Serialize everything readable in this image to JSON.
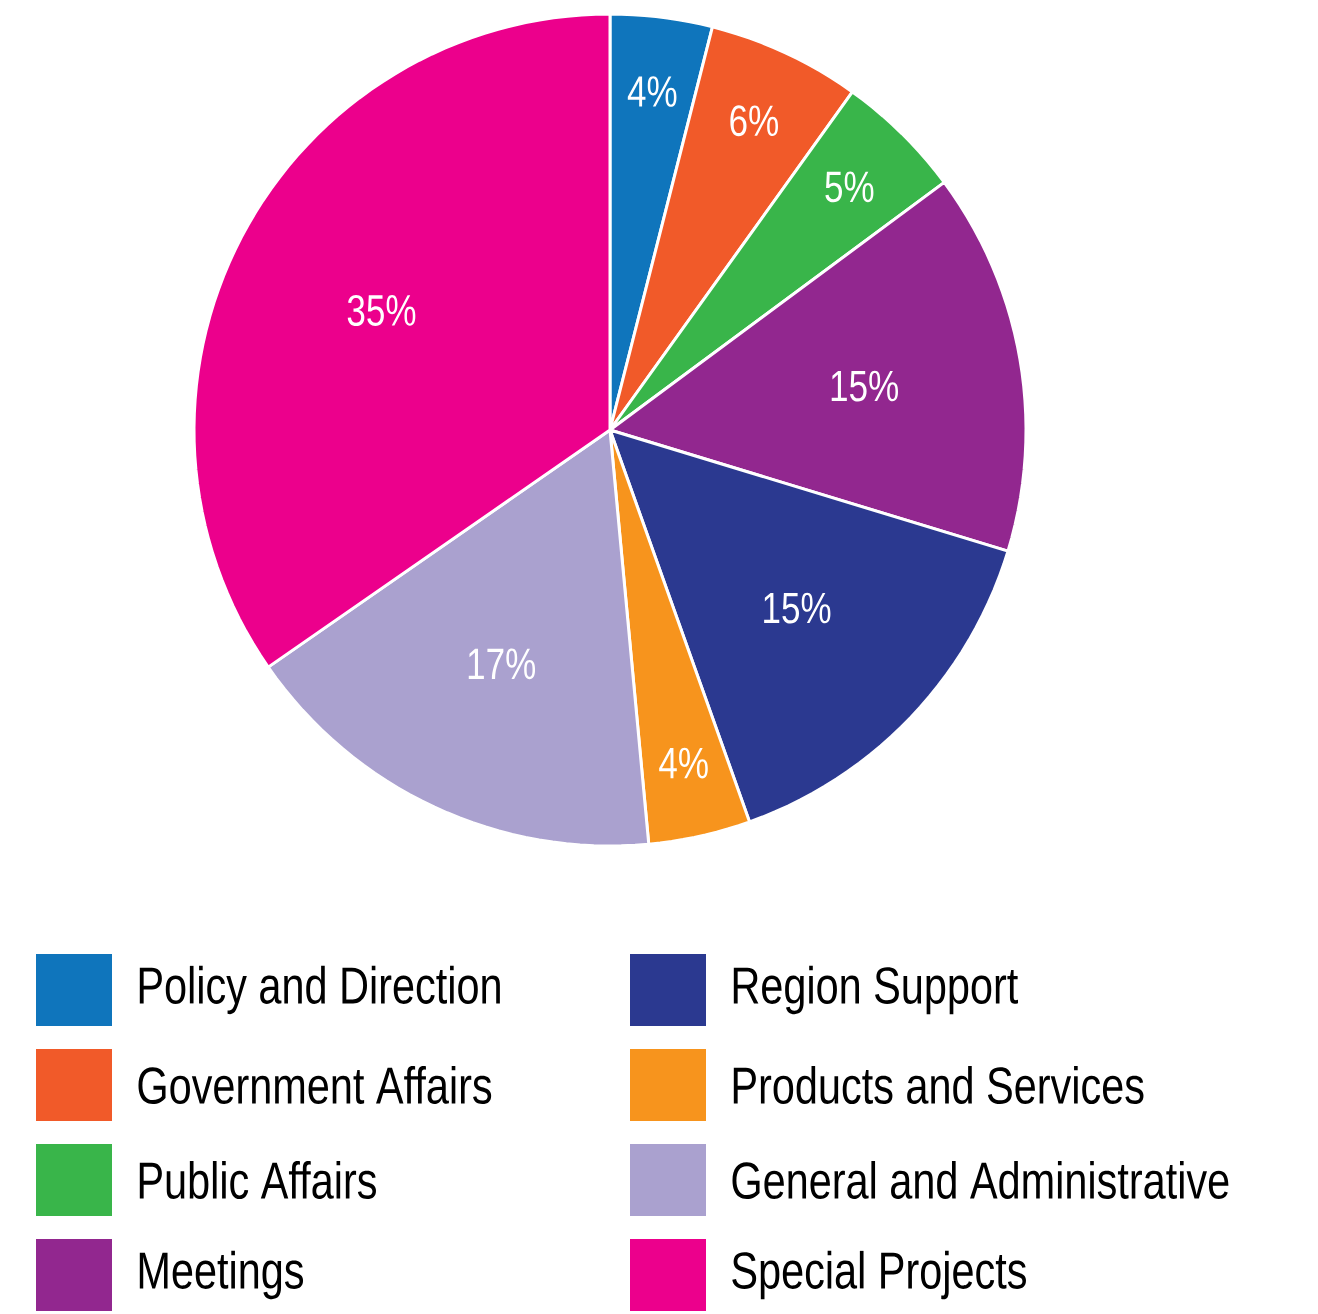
{
  "chart_data": {
    "type": "pie",
    "categories": [
      "Policy and Direction",
      "Government Affairs",
      "Public Affairs",
      "Meetings",
      "Region Support",
      "Products and Services",
      "General and Administrative",
      "Special Projects"
    ],
    "values": [
      4,
      6,
      5,
      15,
      15,
      4,
      17,
      35
    ],
    "value_labels": [
      "4%",
      "6%",
      "5%",
      "15%",
      "15%",
      "4%",
      "17%",
      "35%"
    ],
    "colors": [
      "#0f75bc",
      "#f15a29",
      "#39b54a",
      "#92278f",
      "#2b3990",
      "#f7941d",
      "#aaa1cf",
      "#ec008c"
    ],
    "legend": "bottom"
  }
}
